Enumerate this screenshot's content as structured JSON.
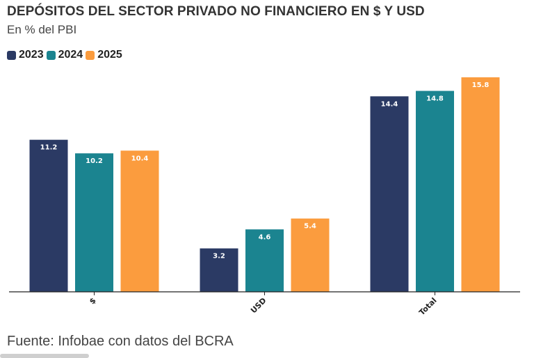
{
  "chart_data": {
    "type": "bar",
    "title": "DEPÓSITOS DEL SECTOR PRIVADO NO FINANCIERO EN $ Y USD",
    "subtitle": "En % del PBI",
    "categories": [
      "$",
      "USD",
      "Total"
    ],
    "series": [
      {
        "name": "2023",
        "color": "#2b3a64",
        "values": [
          11.2,
          3.2,
          14.4
        ]
      },
      {
        "name": "2024",
        "color": "#1b8490",
        "values": [
          10.2,
          4.6,
          14.8
        ]
      },
      {
        "name": "2025",
        "color": "#fb9c3e",
        "values": [
          10.4,
          5.4,
          15.8
        ]
      }
    ],
    "xlabel": "",
    "ylabel": "",
    "ylim": [
      0,
      16
    ],
    "grid": false,
    "legend_position": "top-left",
    "data_labels": true,
    "source": "Fuente: Infobae con datos del BCRA"
  }
}
